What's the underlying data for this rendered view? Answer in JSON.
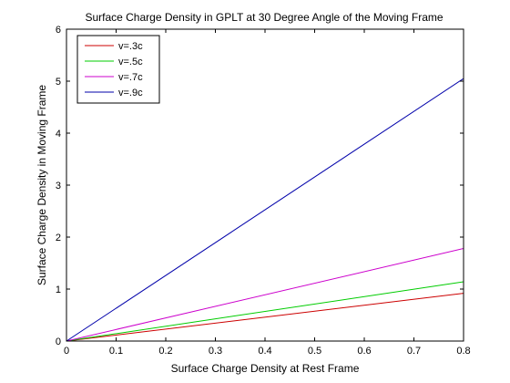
{
  "chart_data": {
    "type": "line",
    "title": "Surface Charge Density in GPLT at 30 Degree Angle of the Moving Frame",
    "xlabel": "Surface Charge Density at Rest Frame",
    "ylabel": "Surface Charge Density in Moving Frame",
    "xlim": [
      0,
      0.8
    ],
    "ylim": [
      0,
      6
    ],
    "xticks": [
      0,
      0.1,
      0.2,
      0.3,
      0.4,
      0.5,
      0.6,
      0.7,
      0.8
    ],
    "yticks": [
      0,
      1,
      2,
      3,
      4,
      5,
      6
    ],
    "xtick_labels": [
      "0",
      "0.1",
      "0.2",
      "0.3",
      "0.4",
      "0.5",
      "0.6",
      "0.7",
      "0.8"
    ],
    "ytick_labels": [
      "0",
      "1",
      "2",
      "3",
      "4",
      "5",
      "6"
    ],
    "grid": false,
    "legend_position": "top-left",
    "series": [
      {
        "name": "v=.3c",
        "color": "#cc0000",
        "x": [
          0,
          0.8
        ],
        "y": [
          0,
          0.92
        ]
      },
      {
        "name": "v=.5c",
        "color": "#00cc00",
        "x": [
          0,
          0.8
        ],
        "y": [
          0,
          1.14
        ]
      },
      {
        "name": "v=.7c",
        "color": "#cc00cc",
        "x": [
          0,
          0.8
        ],
        "y": [
          0,
          1.78
        ]
      },
      {
        "name": "v=.9c",
        "color": "#0000aa",
        "x": [
          0,
          0.8
        ],
        "y": [
          0,
          5.05
        ]
      }
    ]
  }
}
